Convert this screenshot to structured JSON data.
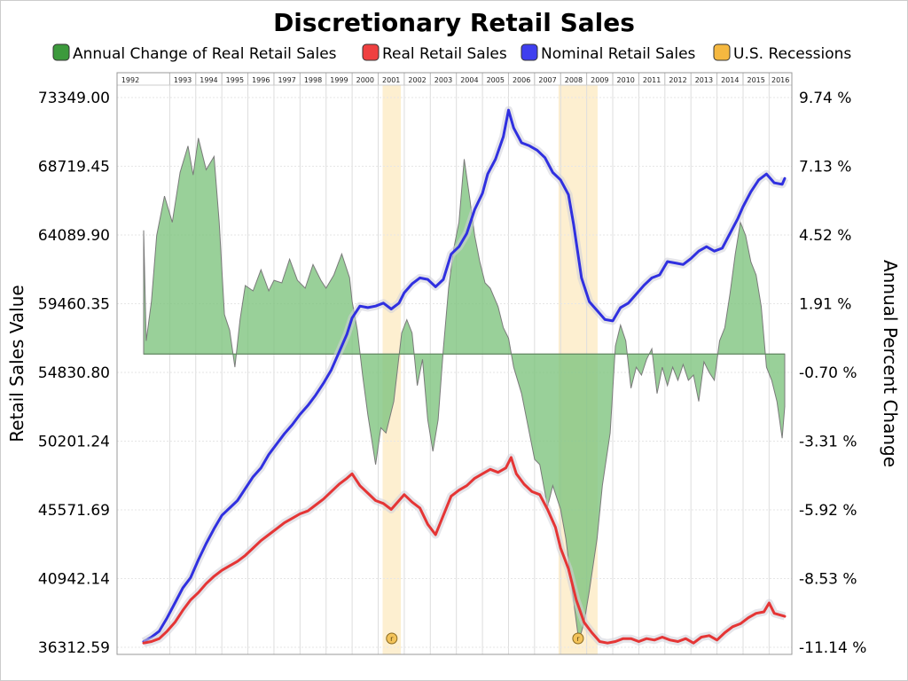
{
  "chart_data": {
    "type": "line",
    "title": "Discretionary Retail Sales",
    "ylabel": "Retail Sales Value",
    "y2label": "Annual Percent Change",
    "years": [
      "1992",
      "1993",
      "1994",
      "1995",
      "1996",
      "1997",
      "1998",
      "1999",
      "2000",
      "2001",
      "2002",
      "2003",
      "2004",
      "2005",
      "2006",
      "2007",
      "2008",
      "2009",
      "2010",
      "2011",
      "2012",
      "2013",
      "2014",
      "2015",
      "2016"
    ],
    "x_range": [
      1992.0,
      2016.6
    ],
    "ylim": [
      36312.59,
      73349.0
    ],
    "y_ticks": [
      "73349.00",
      "68719.45",
      "64089.90",
      "59460.35",
      "54830.80",
      "50201.24",
      "45571.69",
      "40942.14",
      "36312.59"
    ],
    "y2lim": [
      -11.14,
      9.74
    ],
    "y2_ticks": [
      "9.74 %",
      "7.13 %",
      "4.52 %",
      "1.91 %",
      "-0.70 %",
      "-3.31 %",
      "-5.92 %",
      "-8.53 %",
      "-11.14 %"
    ],
    "legend": {
      "placement": "top",
      "items": [
        {
          "label": "Annual Change of Real Retail Sales",
          "color": "#3c9a3c"
        },
        {
          "label": "Real Retail Sales",
          "color": "#ef4040"
        },
        {
          "label": "Nominal Retail Sales",
          "color": "#3f3fef"
        },
        {
          "label": "U.S. Recessions",
          "color": "#f5b840"
        }
      ]
    },
    "recessions": [
      {
        "start": 2001.17,
        "end": 2001.87,
        "marker": "r"
      },
      {
        "start": 2007.92,
        "end": 2009.42,
        "marker": "r"
      }
    ],
    "series": [
      {
        "name": "Nominal Retail Sales",
        "color": "#3030e0",
        "axis": "left",
        "points": [
          [
            1992.0,
            36700
          ],
          [
            1992.3,
            37000
          ],
          [
            1992.6,
            37400
          ],
          [
            1992.9,
            38300
          ],
          [
            1993.2,
            39300
          ],
          [
            1993.5,
            40300
          ],
          [
            1993.8,
            41000
          ],
          [
            1994.1,
            42200
          ],
          [
            1994.4,
            43300
          ],
          [
            1994.7,
            44300
          ],
          [
            1995.0,
            45200
          ],
          [
            1995.3,
            45700
          ],
          [
            1995.6,
            46200
          ],
          [
            1995.9,
            47000
          ],
          [
            1996.2,
            47800
          ],
          [
            1996.5,
            48400
          ],
          [
            1996.8,
            49300
          ],
          [
            1997.1,
            50000
          ],
          [
            1997.4,
            50700
          ],
          [
            1997.7,
            51300
          ],
          [
            1998.0,
            52000
          ],
          [
            1998.3,
            52600
          ],
          [
            1998.6,
            53300
          ],
          [
            1998.9,
            54100
          ],
          [
            1999.2,
            55000
          ],
          [
            1999.5,
            56200
          ],
          [
            1999.8,
            57400
          ],
          [
            2000.0,
            58500
          ],
          [
            2000.3,
            59300
          ],
          [
            2000.6,
            59200
          ],
          [
            2000.9,
            59300
          ],
          [
            2001.2,
            59500
          ],
          [
            2001.5,
            59100
          ],
          [
            2001.8,
            59500
          ],
          [
            2002.0,
            60200
          ],
          [
            2002.3,
            60800
          ],
          [
            2002.6,
            61200
          ],
          [
            2002.9,
            61100
          ],
          [
            2003.2,
            60600
          ],
          [
            2003.5,
            61100
          ],
          [
            2003.8,
            62800
          ],
          [
            2004.1,
            63300
          ],
          [
            2004.4,
            64200
          ],
          [
            2004.7,
            65800
          ],
          [
            2005.0,
            66900
          ],
          [
            2005.2,
            68200
          ],
          [
            2005.5,
            69200
          ],
          [
            2005.8,
            70700
          ],
          [
            2006.0,
            72500
          ],
          [
            2006.2,
            71300
          ],
          [
            2006.5,
            70300
          ],
          [
            2006.8,
            70100
          ],
          [
            2007.1,
            69800
          ],
          [
            2007.4,
            69300
          ],
          [
            2007.7,
            68300
          ],
          [
            2008.0,
            67800
          ],
          [
            2008.3,
            66800
          ],
          [
            2008.5,
            64800
          ],
          [
            2008.8,
            61200
          ],
          [
            2009.1,
            59600
          ],
          [
            2009.4,
            59000
          ],
          [
            2009.7,
            58400
          ],
          [
            2010.0,
            58300
          ],
          [
            2010.3,
            59200
          ],
          [
            2010.6,
            59500
          ],
          [
            2010.9,
            60100
          ],
          [
            2011.2,
            60700
          ],
          [
            2011.5,
            61200
          ],
          [
            2011.8,
            61400
          ],
          [
            2012.1,
            62300
          ],
          [
            2012.4,
            62200
          ],
          [
            2012.7,
            62100
          ],
          [
            2013.0,
            62500
          ],
          [
            2013.3,
            63000
          ],
          [
            2013.6,
            63300
          ],
          [
            2013.9,
            63000
          ],
          [
            2014.2,
            63200
          ],
          [
            2014.5,
            64200
          ],
          [
            2014.8,
            65200
          ],
          [
            2015.0,
            66000
          ],
          [
            2015.3,
            67000
          ],
          [
            2015.6,
            67800
          ],
          [
            2015.9,
            68200
          ],
          [
            2016.2,
            67600
          ],
          [
            2016.5,
            67500
          ],
          [
            2016.6,
            67900
          ]
        ]
      },
      {
        "name": "Real Retail Sales",
        "color": "#e53535",
        "axis": "left",
        "points": [
          [
            1992.0,
            36600
          ],
          [
            1992.3,
            36700
          ],
          [
            1992.6,
            36900
          ],
          [
            1992.9,
            37400
          ],
          [
            1993.2,
            38000
          ],
          [
            1993.5,
            38800
          ],
          [
            1993.8,
            39500
          ],
          [
            1994.1,
            40000
          ],
          [
            1994.4,
            40600
          ],
          [
            1994.7,
            41100
          ],
          [
            1995.0,
            41500
          ],
          [
            1995.3,
            41800
          ],
          [
            1995.6,
            42100
          ],
          [
            1995.9,
            42500
          ],
          [
            1996.2,
            43000
          ],
          [
            1996.5,
            43500
          ],
          [
            1996.8,
            43900
          ],
          [
            1997.1,
            44300
          ],
          [
            1997.4,
            44700
          ],
          [
            1997.7,
            45000
          ],
          [
            1998.0,
            45300
          ],
          [
            1998.3,
            45500
          ],
          [
            1998.6,
            45900
          ],
          [
            1998.9,
            46300
          ],
          [
            1999.2,
            46800
          ],
          [
            1999.5,
            47300
          ],
          [
            1999.8,
            47700
          ],
          [
            2000.0,
            48000
          ],
          [
            2000.3,
            47200
          ],
          [
            2000.6,
            46700
          ],
          [
            2000.9,
            46200
          ],
          [
            2001.2,
            46000
          ],
          [
            2001.5,
            45600
          ],
          [
            2001.8,
            46200
          ],
          [
            2002.0,
            46600
          ],
          [
            2002.3,
            46100
          ],
          [
            2002.6,
            45700
          ],
          [
            2002.9,
            44600
          ],
          [
            2003.2,
            43900
          ],
          [
            2003.5,
            45200
          ],
          [
            2003.8,
            46500
          ],
          [
            2004.1,
            46900
          ],
          [
            2004.4,
            47200
          ],
          [
            2004.7,
            47700
          ],
          [
            2005.0,
            48000
          ],
          [
            2005.3,
            48300
          ],
          [
            2005.6,
            48100
          ],
          [
            2005.9,
            48400
          ],
          [
            2006.1,
            49100
          ],
          [
            2006.3,
            48000
          ],
          [
            2006.6,
            47300
          ],
          [
            2006.9,
            46800
          ],
          [
            2007.2,
            46600
          ],
          [
            2007.5,
            45600
          ],
          [
            2007.8,
            44400
          ],
          [
            2008.0,
            43000
          ],
          [
            2008.3,
            41600
          ],
          [
            2008.6,
            39500
          ],
          [
            2008.9,
            38000
          ],
          [
            2009.2,
            37300
          ],
          [
            2009.5,
            36700
          ],
          [
            2009.8,
            36600
          ],
          [
            2010.1,
            36700
          ],
          [
            2010.4,
            36900
          ],
          [
            2010.7,
            36900
          ],
          [
            2011.0,
            36700
          ],
          [
            2011.3,
            36900
          ],
          [
            2011.6,
            36800
          ],
          [
            2011.9,
            37000
          ],
          [
            2012.2,
            36800
          ],
          [
            2012.5,
            36700
          ],
          [
            2012.8,
            36900
          ],
          [
            2013.1,
            36600
          ],
          [
            2013.4,
            37000
          ],
          [
            2013.7,
            37100
          ],
          [
            2014.0,
            36800
          ],
          [
            2014.3,
            37300
          ],
          [
            2014.6,
            37700
          ],
          [
            2014.9,
            37900
          ],
          [
            2015.2,
            38300
          ],
          [
            2015.5,
            38600
          ],
          [
            2015.8,
            38700
          ],
          [
            2016.0,
            39300
          ],
          [
            2016.2,
            38600
          ],
          [
            2016.6,
            38400
          ]
        ]
      },
      {
        "name": "Annual Change of Real Retail Sales",
        "color": "#3c9a3c",
        "axis": "right",
        "points": [
          [
            1992.0,
            4.7
          ],
          [
            1992.1,
            0.5
          ],
          [
            1992.3,
            2.0
          ],
          [
            1992.5,
            4.5
          ],
          [
            1992.8,
            6.0
          ],
          [
            1993.1,
            5.0
          ],
          [
            1993.4,
            6.9
          ],
          [
            1993.7,
            7.9
          ],
          [
            1993.9,
            6.8
          ],
          [
            1994.1,
            8.2
          ],
          [
            1994.4,
            7.0
          ],
          [
            1994.7,
            7.5
          ],
          [
            1994.9,
            5.0
          ],
          [
            1995.1,
            1.5
          ],
          [
            1995.3,
            0.9
          ],
          [
            1995.5,
            -0.5
          ],
          [
            1995.7,
            1.3
          ],
          [
            1995.9,
            2.6
          ],
          [
            1996.2,
            2.4
          ],
          [
            1996.5,
            3.2
          ],
          [
            1996.8,
            2.4
          ],
          [
            1997.0,
            2.8
          ],
          [
            1997.3,
            2.7
          ],
          [
            1997.6,
            3.6
          ],
          [
            1997.9,
            2.8
          ],
          [
            1998.2,
            2.5
          ],
          [
            1998.5,
            3.4
          ],
          [
            1998.8,
            2.8
          ],
          [
            1999.0,
            2.5
          ],
          [
            1999.3,
            3.0
          ],
          [
            1999.6,
            3.8
          ],
          [
            1999.9,
            2.9
          ],
          [
            2000.0,
            2.0
          ],
          [
            2000.2,
            0.9
          ],
          [
            2000.4,
            -0.8
          ],
          [
            2000.6,
            -2.3
          ],
          [
            2000.9,
            -4.2
          ],
          [
            2001.1,
            -2.8
          ],
          [
            2001.3,
            -3.0
          ],
          [
            2001.6,
            -1.8
          ],
          [
            2001.9,
            0.8
          ],
          [
            2002.1,
            1.3
          ],
          [
            2002.3,
            0.8
          ],
          [
            2002.5,
            -1.2
          ],
          [
            2002.7,
            -0.2
          ],
          [
            2002.9,
            -2.5
          ],
          [
            2003.1,
            -3.7
          ],
          [
            2003.3,
            -2.5
          ],
          [
            2003.5,
            0.2
          ],
          [
            2003.7,
            2.5
          ],
          [
            2003.9,
            4.0
          ],
          [
            2004.1,
            5.0
          ],
          [
            2004.3,
            7.4
          ],
          [
            2004.5,
            6.0
          ],
          [
            2004.7,
            4.5
          ],
          [
            2004.9,
            3.5
          ],
          [
            2005.1,
            2.7
          ],
          [
            2005.3,
            2.5
          ],
          [
            2005.6,
            1.8
          ],
          [
            2005.8,
            1.0
          ],
          [
            2006.0,
            0.6
          ],
          [
            2006.2,
            -0.5
          ],
          [
            2006.5,
            -1.5
          ],
          [
            2006.8,
            -3.0
          ],
          [
            2007.0,
            -4.0
          ],
          [
            2007.2,
            -4.2
          ],
          [
            2007.5,
            -5.8
          ],
          [
            2007.7,
            -5.0
          ],
          [
            2008.0,
            -5.9
          ],
          [
            2008.2,
            -7.0
          ],
          [
            2008.5,
            -9.4
          ],
          [
            2008.7,
            -10.9
          ],
          [
            2008.9,
            -10.2
          ],
          [
            2009.1,
            -9.0
          ],
          [
            2009.4,
            -7.0
          ],
          [
            2009.6,
            -5.0
          ],
          [
            2009.9,
            -3.0
          ],
          [
            2010.1,
            0.3
          ],
          [
            2010.3,
            1.1
          ],
          [
            2010.5,
            0.5
          ],
          [
            2010.7,
            -1.3
          ],
          [
            2010.9,
            -0.5
          ],
          [
            2011.1,
            -0.8
          ],
          [
            2011.3,
            -0.2
          ],
          [
            2011.5,
            0.2
          ],
          [
            2011.7,
            -1.5
          ],
          [
            2011.9,
            -0.5
          ],
          [
            2012.1,
            -1.2
          ],
          [
            2012.3,
            -0.5
          ],
          [
            2012.5,
            -1.0
          ],
          [
            2012.7,
            -0.4
          ],
          [
            2012.9,
            -1.0
          ],
          [
            2013.1,
            -0.8
          ],
          [
            2013.3,
            -1.8
          ],
          [
            2013.5,
            -0.3
          ],
          [
            2013.7,
            -0.7
          ],
          [
            2013.9,
            -1.0
          ],
          [
            2014.1,
            0.5
          ],
          [
            2014.3,
            1.0
          ],
          [
            2014.5,
            2.3
          ],
          [
            2014.7,
            3.8
          ],
          [
            2014.9,
            5.0
          ],
          [
            2015.1,
            4.5
          ],
          [
            2015.3,
            3.5
          ],
          [
            2015.5,
            3.0
          ],
          [
            2015.7,
            1.8
          ],
          [
            2015.9,
            -0.5
          ],
          [
            2016.1,
            -1.0
          ],
          [
            2016.3,
            -1.8
          ],
          [
            2016.5,
            -3.2
          ],
          [
            2016.6,
            -2.0
          ]
        ]
      }
    ]
  }
}
